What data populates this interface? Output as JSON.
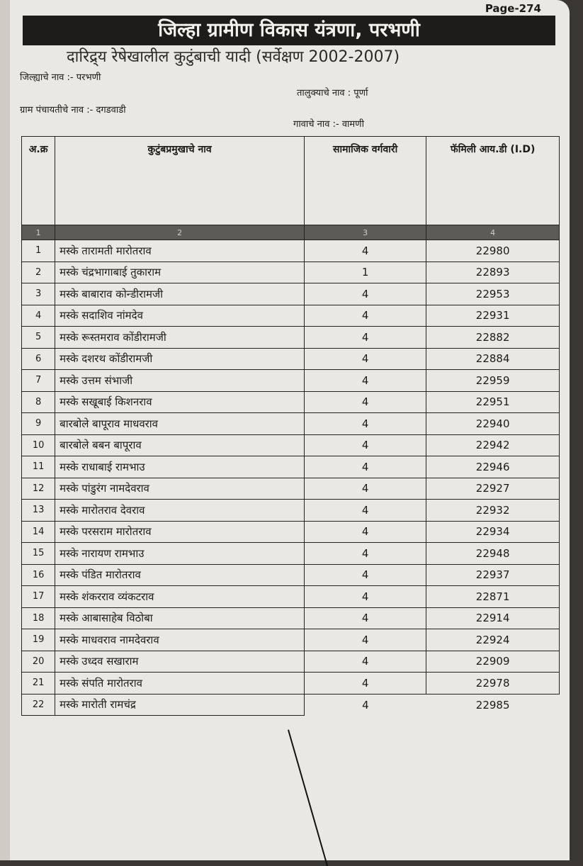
{
  "header": {
    "title": "जिल्हा ग्रामीण विकास यंत्रणा, परभणी",
    "subtitle": "दारिद्र्य रेषेखालील कुटुंबाची यादी (सर्वेक्षण 2002-2007)",
    "page": "Page-274",
    "district": "जिल्ह्याचे नाव :- परभणी",
    "taluka": "तालुक्याचे नाव : पूर्णा",
    "gram_panchayat": "ग्राम पंचायतीचे नाव :- दगडवाडी",
    "village": "गावाचे नाव :- वामणी"
  },
  "table": {
    "columns": [
      "अ.क्र",
      "कुटुंबप्रमुखाचे नाव",
      "सामाजिक वर्गवारी",
      "फॅमिली आय.डी (I.D)"
    ],
    "column_numbers": [
      "1",
      "2",
      "3",
      "4"
    ],
    "rows": [
      [
        "1",
        "मस्के तारामती मारोतराव",
        "4",
        "22980"
      ],
      [
        "2",
        "मस्के चंद्रभागाबाई तुकाराम",
        "1",
        "22893"
      ],
      [
        "3",
        "मस्के बाबाराव कोन्डीरामजी",
        "4",
        "22953"
      ],
      [
        "4",
        "मस्के सदाशिव नांमदेव",
        "4",
        "22931"
      ],
      [
        "5",
        "मस्के रूस्तमराव कोंडीरामजी",
        "4",
        "22882"
      ],
      [
        "6",
        "मस्के दशरथ कोंडीरामजी",
        "4",
        "22884"
      ],
      [
        "7",
        "मस्के उत्तम संभाजी",
        "4",
        "22959"
      ],
      [
        "8",
        "मस्के सखूबाई किशनराव",
        "4",
        "22951"
      ],
      [
        "9",
        "बारबोले बापूराव माधवराव",
        "4",
        "22940"
      ],
      [
        "10",
        "बारबोले बबन बापूराव",
        "4",
        "22942"
      ],
      [
        "11",
        "मस्के राधाबाई रामभाउ",
        "4",
        "22946"
      ],
      [
        "12",
        "मस्के पांडुरंग नामदेवराव",
        "4",
        "22927"
      ],
      [
        "13",
        "मस्के मारोतराव देवराव",
        "4",
        "22932"
      ],
      [
        "14",
        "मस्के परसराम मारोतराव",
        "4",
        "22934"
      ],
      [
        "15",
        "मस्के नारायण रामभाउ",
        "4",
        "22948"
      ],
      [
        "16",
        "मस्के पंडित मारोतराव",
        "4",
        "22937"
      ],
      [
        "17",
        "मस्के शंकरराव व्यंकटराव",
        "4",
        "22871"
      ],
      [
        "18",
        "मस्के आबासाहेब विठोबा",
        "4",
        "22914"
      ],
      [
        "19",
        "मस्के माधवराव नामदेवराव",
        "4",
        "22924"
      ],
      [
        "20",
        "मस्के उध्दव सखाराम",
        "4",
        "22909"
      ],
      [
        "21",
        "मस्के संपति मारोतराव",
        "4",
        "22978"
      ],
      [
        "22",
        "मस्के मारोती रामचंद्र",
        "4",
        "22985"
      ]
    ]
  }
}
